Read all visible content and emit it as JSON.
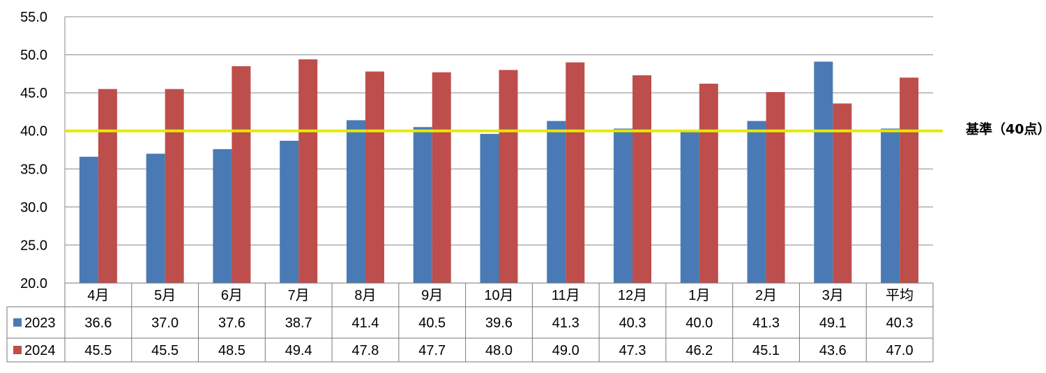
{
  "chart_data": {
    "type": "bar",
    "categories": [
      "4月",
      "5月",
      "6月",
      "7月",
      "8月",
      "9月",
      "10月",
      "11月",
      "12月",
      "1月",
      "2月",
      "3月",
      "平均"
    ],
    "series": [
      {
        "name": "2023",
        "color": "#4a7ab5",
        "values": [
          36.6,
          37.0,
          37.6,
          38.7,
          41.4,
          40.5,
          39.6,
          41.3,
          40.3,
          40.0,
          41.3,
          49.1,
          40.3
        ]
      },
      {
        "name": "2024",
        "color": "#bd4e4c",
        "values": [
          45.5,
          45.5,
          48.5,
          49.4,
          47.8,
          47.7,
          48.0,
          49.0,
          47.3,
          46.2,
          45.1,
          43.6,
          47.0
        ]
      }
    ],
    "ylim": [
      20,
      55
    ],
    "yticks": [
      "20.0",
      "25.0",
      "30.0",
      "35.0",
      "40.0",
      "45.0",
      "50.0",
      "55.0"
    ],
    "grid": true,
    "data_table": true,
    "reference_line": {
      "value": 40,
      "label": "基準（40点）",
      "color": "#e8e800"
    }
  }
}
